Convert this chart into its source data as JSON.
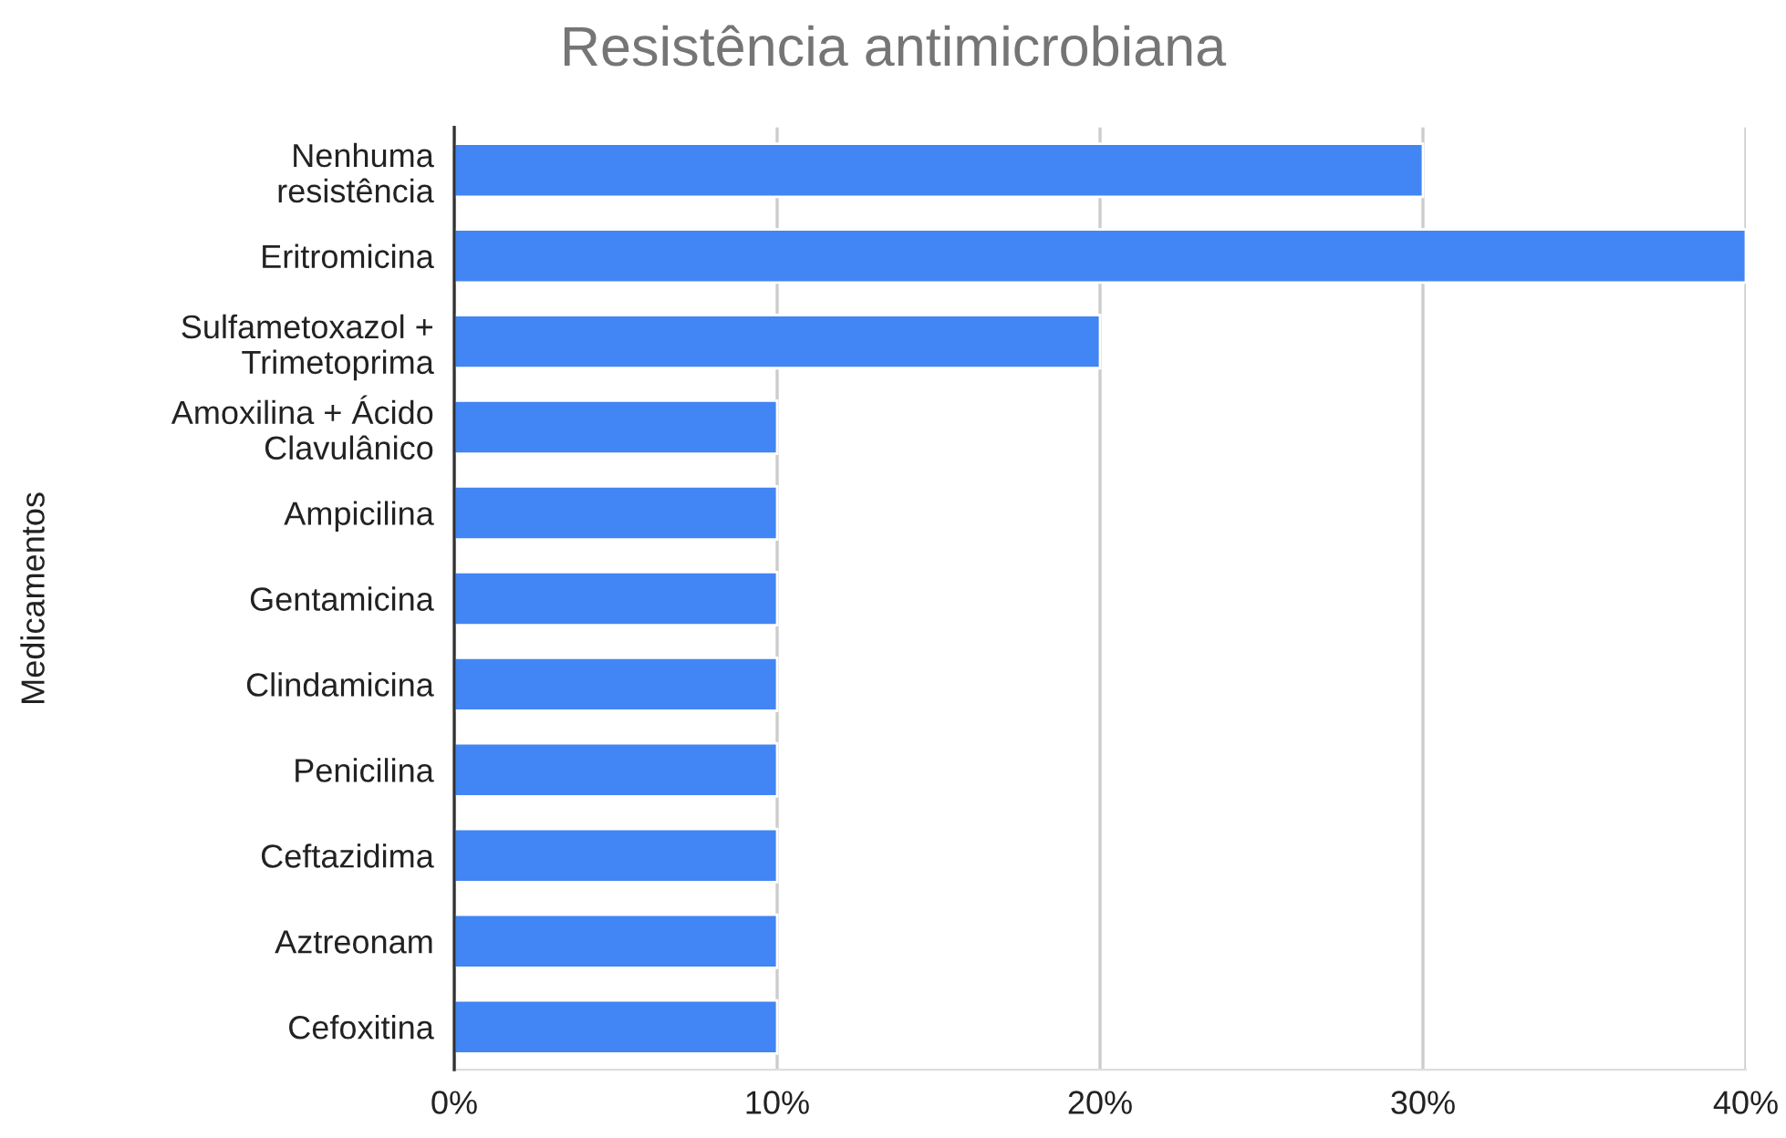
{
  "chart_data": {
    "type": "bar",
    "orientation": "horizontal",
    "title": "Resistência antimicrobiana",
    "ylabel": "Medicamentos",
    "categories": [
      "Nenhuma\nresistência",
      "Eritromicina",
      "Sulfametoxazol +\nTrimetoprima",
      "Amoxilina + Ácido\nClavulânico",
      "Ampicilina",
      "Gentamicina",
      "Clindamicina",
      "Penicilina",
      "Ceftazidima",
      "Aztreonam",
      "Cefoxitina"
    ],
    "values": [
      30,
      40,
      20,
      10,
      10,
      10,
      10,
      10,
      10,
      10,
      10
    ],
    "color": "#4285f4",
    "xlim": [
      0,
      40
    ],
    "xticks": [
      {
        "value": 0,
        "label": "0%"
      },
      {
        "value": 10,
        "label": "10%"
      },
      {
        "value": 20,
        "label": "20%"
      },
      {
        "value": 30,
        "label": "30%"
      },
      {
        "value": 40,
        "label": "40%"
      }
    ],
    "grid": "x",
    "legend": false
  }
}
